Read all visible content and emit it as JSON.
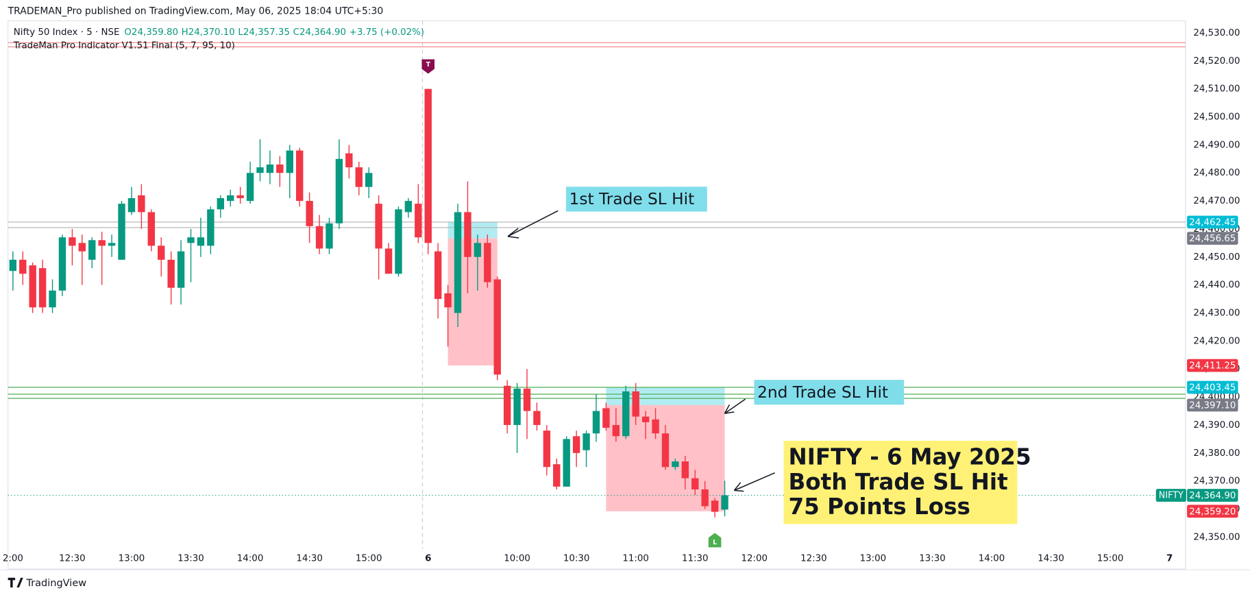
{
  "header": {
    "published": "TRADEMAN_Pro published on TradingView.com, May 06, 2025 18:04 UTC+5:30",
    "symbol": "Nifty 50 Index · 5 · NSE",
    "open": "O24,359.80",
    "high": "H24,370.10",
    "low": "L24,357.35",
    "close": "C24,364.90",
    "change": "+3.75 (+0.02%)",
    "indicator": "TradeMan Pro Indicator V1.51 Final (5, 7, 95, 10)"
  },
  "chart_data": {
    "type": "candlestick",
    "up_color": "#089981",
    "down_color": "#f23645",
    "ohlc": [
      [
        24445,
        24452,
        24438,
        24449
      ],
      [
        24449,
        24452,
        24440,
        24444
      ],
      [
        24447,
        24448,
        24430,
        24432
      ],
      [
        24446,
        24449,
        24430,
        24432
      ],
      [
        24432,
        24442,
        24430,
        24438
      ],
      [
        24438,
        24458,
        24436,
        24457
      ],
      [
        24457,
        24460,
        24447,
        24454
      ],
      [
        24455,
        24458,
        24440,
        24452
      ],
      [
        24449,
        24457,
        24446,
        24456
      ],
      [
        24456,
        24459,
        24440,
        24454
      ],
      [
        24454,
        24458,
        24450,
        24455
      ],
      [
        24449,
        24470,
        24449,
        24469
      ],
      [
        24466,
        24475,
        24465,
        24471
      ],
      [
        24472,
        24476,
        24460,
        24466
      ],
      [
        24466,
        24467,
        24452,
        24454
      ],
      [
        24454,
        24457,
        24443,
        24449
      ],
      [
        24449,
        24452,
        24433,
        24439
      ],
      [
        24439,
        24456,
        24433,
        24452
      ],
      [
        24455,
        24460,
        24441,
        24457
      ],
      [
        24454,
        24464,
        24450,
        24457
      ],
      [
        24454,
        24468,
        24451,
        24467
      ],
      [
        24467,
        24472,
        24464,
        24471
      ],
      [
        24470,
        24474,
        24468,
        24472
      ],
      [
        24472,
        24475,
        24469,
        24471
      ],
      [
        24470,
        24484,
        24469,
        24480
      ],
      [
        24480,
        24492,
        24477,
        24482
      ],
      [
        24480,
        24488,
        24476,
        24483
      ],
      [
        24483,
        24486,
        24475,
        24480
      ],
      [
        24480,
        24490,
        24471,
        24488
      ],
      [
        24488,
        24489,
        24468,
        24470
      ],
      [
        24470,
        24473,
        24455,
        24461
      ],
      [
        24461,
        24465,
        24451,
        24453
      ],
      [
        24453,
        24464,
        24451,
        24462
      ],
      [
        24462,
        24492,
        24460,
        24485
      ],
      [
        24487,
        24490,
        24478,
        24482
      ],
      [
        24482,
        24484,
        24472,
        24475
      ],
      [
        24475,
        24482,
        24471,
        24480
      ],
      [
        24469,
        24472,
        24442,
        24453
      ],
      [
        24453,
        24455,
        24444,
        24444
      ],
      [
        24444,
        24468,
        24443,
        24467
      ],
      [
        24466,
        24471,
        24464,
        24470
      ],
      [
        24469,
        24476,
        24455,
        24457
      ],
      [
        24510,
        24510,
        24451,
        24455
      ],
      [
        24452,
        24455,
        24428,
        24435
      ],
      [
        24437,
        24440,
        24418,
        24432
      ],
      [
        24430,
        24469,
        24425,
        24466
      ],
      [
        24466,
        24477,
        24437,
        24450
      ],
      [
        24450,
        24458,
        24438,
        24455
      ],
      [
        24455,
        24458,
        24439,
        24441
      ],
      [
        24442,
        24443,
        24406,
        24408
      ],
      [
        24404,
        24406,
        24387,
        24390
      ],
      [
        24390,
        24405,
        24380,
        24403
      ],
      [
        24403,
        24410,
        24385,
        24395
      ],
      [
        24395,
        24398,
        24388,
        24390
      ],
      [
        24388,
        24390,
        24372,
        24375
      ],
      [
        24376,
        24378,
        24367,
        24368
      ],
      [
        24368,
        24386,
        24368,
        24385
      ],
      [
        24386,
        24388,
        24375,
        24380
      ],
      [
        24381,
        24388,
        24375,
        24387
      ],
      [
        24387,
        24401,
        24384,
        24395
      ],
      [
        24396,
        24398,
        24388,
        24389
      ],
      [
        24390,
        24396,
        24384,
        24386
      ],
      [
        24386,
        24404,
        24385,
        24402
      ],
      [
        24402,
        24405,
        24390,
        24393
      ],
      [
        24393,
        24395,
        24385,
        24391
      ],
      [
        24392,
        24396,
        24385,
        24387
      ],
      [
        24387,
        24390,
        24374,
        24375
      ],
      [
        24375,
        24378,
        24374,
        24377
      ],
      [
        24377,
        24379,
        24367,
        24371
      ],
      [
        24371,
        24374,
        24365,
        24367
      ],
      [
        24367,
        24370,
        24360,
        24361
      ],
      [
        24363,
        24364,
        24357,
        24359
      ],
      [
        24359.8,
        24370.1,
        24357.35,
        24364.9
      ]
    ],
    "xlim": [
      -0.5,
      118.6
    ],
    "xticks": [
      {
        "value": 0,
        "label": "2:00"
      },
      {
        "value": 6,
        "label": "12:30"
      },
      {
        "value": 12,
        "label": "13:00"
      },
      {
        "value": 18,
        "label": "13:30"
      },
      {
        "value": 24,
        "label": "14:00"
      },
      {
        "value": 30,
        "label": "14:30"
      },
      {
        "value": 36,
        "label": "15:00"
      },
      {
        "value": 42,
        "label": "6"
      },
      {
        "value": 51,
        "label": "10:00"
      },
      {
        "value": 57,
        "label": "10:30"
      },
      {
        "value": 63,
        "label": "11:00"
      },
      {
        "value": 69,
        "label": "11:30"
      },
      {
        "value": 75,
        "label": "12:00"
      },
      {
        "value": 81,
        "label": "12:30"
      },
      {
        "value": 87,
        "label": "13:00"
      },
      {
        "value": 93,
        "label": "13:30"
      },
      {
        "value": 99,
        "label": "14:00"
      },
      {
        "value": 105,
        "label": "14:30"
      },
      {
        "value": 111,
        "label": "15:00"
      },
      {
        "value": 117,
        "label": "7"
      }
    ],
    "ylim": [
      24338.6,
      24534.3
    ],
    "yticks": [
      {
        "value": 24350,
        "label": "24,350.00"
      },
      {
        "value": 24360,
        "label": "24,360.00"
      },
      {
        "value": 24370,
        "label": "24,370.00"
      },
      {
        "value": 24380,
        "label": "24,380.00"
      },
      {
        "value": 24390,
        "label": "24,390.00"
      },
      {
        "value": 24400,
        "label": "24,400.00"
      },
      {
        "value": 24410,
        "label": "24,410.00"
      },
      {
        "value": 24420,
        "label": "24,420.00"
      },
      {
        "value": 24430,
        "label": "24,430.00"
      },
      {
        "value": 24440,
        "label": "24,440.00"
      },
      {
        "value": 24450,
        "label": "24,450.00"
      },
      {
        "value": 24460,
        "label": "24,460.00"
      },
      {
        "value": 24470,
        "label": "24,470.00"
      },
      {
        "value": 24480,
        "label": "24,480.00"
      },
      {
        "value": 24490,
        "label": "24,490.00"
      },
      {
        "value": 24500,
        "label": "24,500.00"
      },
      {
        "value": 24510,
        "label": "24,510.00"
      },
      {
        "value": 24520,
        "label": "24,520.00"
      },
      {
        "value": 24530,
        "label": "24,530.00"
      }
    ],
    "levels": [
      {
        "value": 24526.5,
        "color": "#f28b8b"
      },
      {
        "value": 24525,
        "color": "#f28b8b"
      },
      {
        "value": 24462.45,
        "color": "#b0b0b0"
      },
      {
        "value": 24460.5,
        "color": "#b0b0b0"
      },
      {
        "value": 24403.45,
        "color": "#4caf50"
      },
      {
        "value": 24401,
        "color": "#4caf50"
      },
      {
        "value": 24399.5,
        "color": "#4caf50"
      }
    ],
    "zones": [
      {
        "from": 44,
        "to": 49,
        "top": 24462.45,
        "bottom": 24456.65,
        "color": "#b2ebf2"
      },
      {
        "from": 44,
        "to": 49,
        "top": 24456.65,
        "bottom": 24411.25,
        "color": "#ffc1c7"
      },
      {
        "from": 60,
        "to": 72,
        "top": 24403.45,
        "bottom": 24397.1,
        "color": "#b2ebf2"
      },
      {
        "from": 60,
        "to": 72,
        "top": 24397.1,
        "bottom": 24359.2,
        "color": "#ffc1c7"
      }
    ],
    "price_labels": [
      {
        "value": 24462.45,
        "label": "24,462.45",
        "color": "#00bcd4"
      },
      {
        "value": 24456.65,
        "label": "24,456.65",
        "color": "#787b86"
      },
      {
        "value": 24411.25,
        "label": "24,411.25",
        "color": "#f23645"
      },
      {
        "value": 24403.45,
        "label": "24,403.45",
        "color": "#00bcd4"
      },
      {
        "value": 24397.1,
        "label": "24,397.10",
        "color": "#787b86"
      },
      {
        "value": 24364.9,
        "label": "24,364.90",
        "color": "#089981"
      },
      {
        "value": 24359.2,
        "label": "24,359.20",
        "color": "#f23645"
      }
    ],
    "last_price_tag": "NIFTY",
    "signals": [
      {
        "index": 42,
        "label": "T",
        "color": "#880e4f"
      },
      {
        "index": 71,
        "label": "L",
        "color": "#4caf50"
      }
    ],
    "annotations": [
      {
        "text": "1st Trade SL Hit",
        "color": "#80deea"
      },
      {
        "text": "2nd Trade SL Hit",
        "color": "#80deea"
      },
      {
        "lines": [
          "NIFTY - 6 May 2025",
          "Both Trade SL Hit",
          "75 Points Loss"
        ],
        "color": "#fff176"
      }
    ]
  },
  "footer": {
    "brand": "TradingView"
  }
}
